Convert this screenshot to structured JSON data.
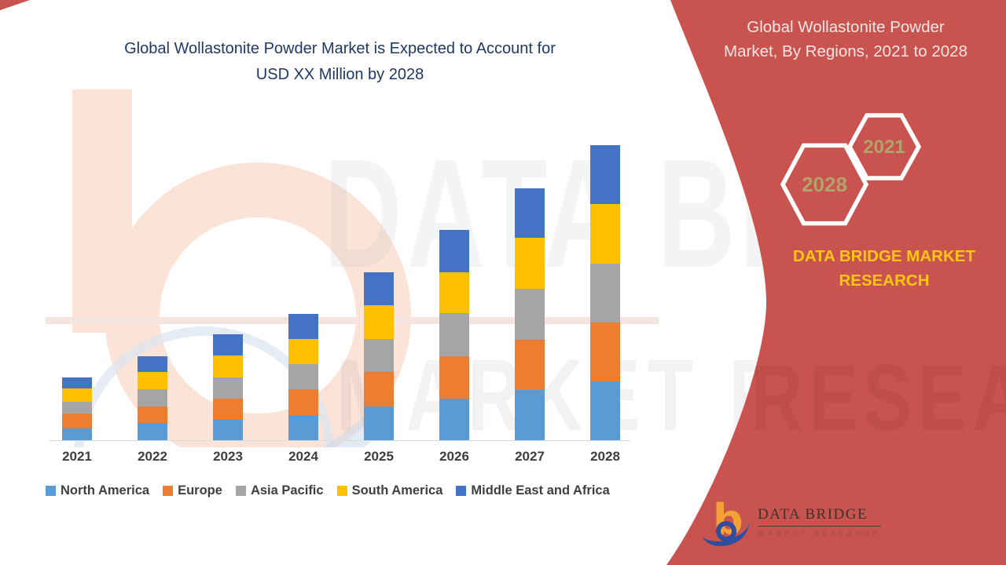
{
  "header": {
    "chart_title_line1": "Global Wollastonite Powder Market is Expected to Account for",
    "chart_title_line2": "USD XX Million by 2028",
    "title_color": "#1F3864"
  },
  "side_panel": {
    "background_color": "#C9534E",
    "title_line1": "Global Wollastonite Powder",
    "title_line2": "Market, By Regions, 2021 to 2028",
    "hexagon_small_label": "2021",
    "hexagon_large_label": "2028",
    "hexagon_label_color": "#B1A36B",
    "brand_line1": "DATA BRIDGE MARKET",
    "brand_line2": "RESEARCH",
    "brand_color": "#FFC713",
    "logo_name": "DATA BRIDGE",
    "logo_subtitle": "MARKET RESEARCH"
  },
  "watermark": {
    "big_text": "DATA BRIDGE",
    "secondary_text": "MARKET RESEARCH",
    "panel_text": "RESEARCH"
  },
  "chart_data": {
    "type": "bar",
    "stacked": true,
    "title": "Global Wollastonite Powder Market is Expected to Account for USD XX Million by 2028",
    "categories": [
      "2021",
      "2022",
      "2023",
      "2024",
      "2025",
      "2026",
      "2027",
      "2028"
    ],
    "series": [
      {
        "name": "North America",
        "color": "#5B9BD5",
        "values": [
          15,
          22,
          26,
          32,
          43,
          53,
          64,
          75
        ]
      },
      {
        "name": "Europe",
        "color": "#ED7D31",
        "values": [
          19,
          21,
          27,
          33,
          44,
          54,
          64,
          75
        ]
      },
      {
        "name": "Asia Pacific",
        "color": "#A5A5A5",
        "values": [
          15,
          22,
          27,
          32,
          42,
          55,
          65,
          75
        ]
      },
      {
        "name": "South America",
        "color": "#FFC000",
        "values": [
          17,
          22,
          28,
          32,
          43,
          52,
          65,
          76
        ]
      },
      {
        "name": "Middle East and Africa",
        "color": "#4472C4",
        "values": [
          14,
          20,
          27,
          32,
          42,
          54,
          63,
          75
        ]
      }
    ],
    "stacked_totals": [
      80,
      107,
      135,
      161,
      214,
      268,
      321,
      376
    ],
    "xlabel": "",
    "ylabel": "",
    "y_axis_visible": false,
    "grid": false,
    "legend_position": "bottom",
    "units_note": "Relative heights estimated from pixels; chart shows no numeric value axis (values stated as USD XX Million)."
  }
}
